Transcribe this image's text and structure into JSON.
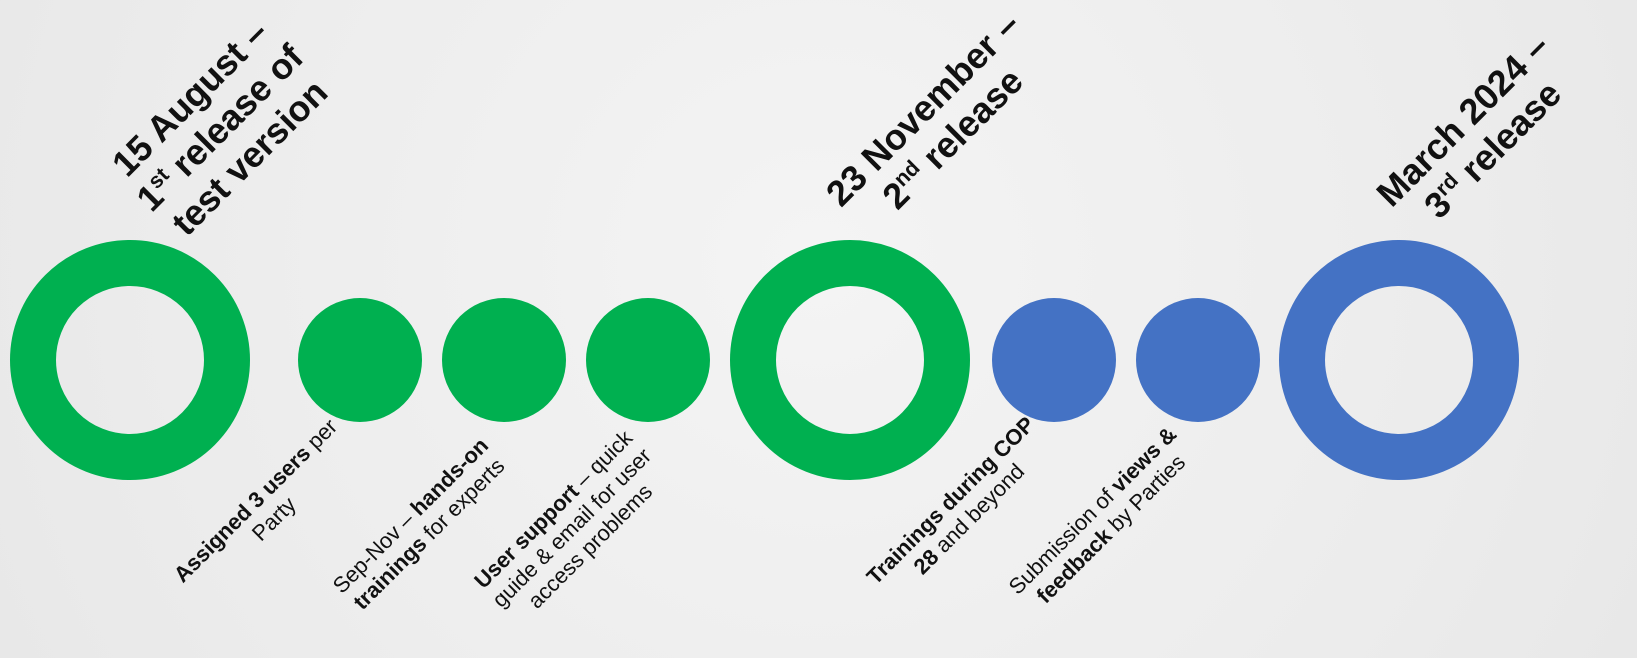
{
  "colors": {
    "green": "#00b050",
    "blue": "#4472c4",
    "text": "#111111",
    "background": "#efefef"
  },
  "milestones": [
    {
      "date": "15 August –",
      "release_num": "1",
      "release_sup": "st",
      "release_text": " release of",
      "extra": "test version",
      "color": "green"
    },
    {
      "date": "23 November –",
      "release_num": "2",
      "release_sup": "nd",
      "release_text": " release",
      "extra": "",
      "color": "green"
    },
    {
      "date": "March 2024 –",
      "release_num": "3",
      "release_sup": "rd",
      "release_text": " release",
      "extra": "",
      "color": "blue"
    }
  ],
  "steps": [
    {
      "color": "green",
      "line1_bold": "Assigned 3 users",
      "line1_rest": " per",
      "line2_pre": "Party",
      "line2_bold": "",
      "line2_rest": ""
    },
    {
      "color": "green",
      "line1_pre": "Sep-Nov – ",
      "line1_bold": "hands-on",
      "line2_bold": "trainings",
      "line2_rest": " for experts"
    },
    {
      "color": "green",
      "line1_bold": "User support",
      "line1_rest": " – quick",
      "line2": "guide & email for user",
      "line3": "access problems"
    },
    {
      "color": "blue",
      "line1_bold": "Trainings during COP",
      "line2_bold": "28",
      "line2_rest": " and beyond"
    },
    {
      "color": "blue",
      "line1_pre": "Submission of ",
      "line1_bold": "views &",
      "line2_bold": "feedback",
      "line2_rest": " by Parties"
    }
  ]
}
